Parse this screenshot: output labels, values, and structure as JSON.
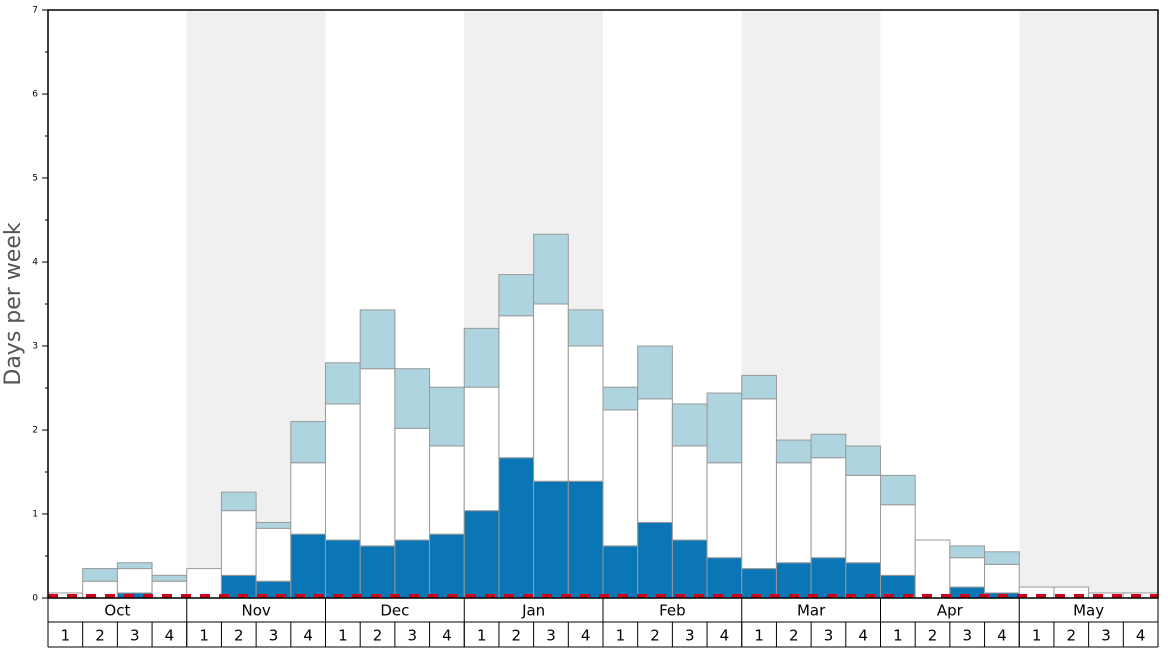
{
  "chart_data": {
    "type": "stacked_bar",
    "y_label": "Days per week",
    "months": [
      "Oct",
      "Nov",
      "Dec",
      "Jan",
      "Feb",
      "Mar",
      "Apr",
      "May"
    ],
    "categories": [
      "1",
      "2",
      "3",
      "4",
      "1",
      "2",
      "3",
      "4",
      "1",
      "2",
      "3",
      "4",
      "1",
      "2",
      "3",
      "4",
      "1",
      "2",
      "3",
      "4",
      "1",
      "2",
      "3",
      "4",
      "1",
      "2",
      "3",
      "4",
      "1",
      "2",
      "3",
      "4"
    ],
    "series": [
      {
        "color": "#0a76b6",
        "values": [
          0,
          0,
          0.06,
          0,
          0,
          0.27,
          0.2,
          0.76,
          0.69,
          0.62,
          0.69,
          0.76,
          1.04,
          1.67,
          1.39,
          1.39,
          0.62,
          0.9,
          0.69,
          0.48,
          0.35,
          0.42,
          0.48,
          0.42,
          0.27,
          0,
          0.13,
          0.06,
          0,
          0,
          0,
          0
        ]
      },
      {
        "color": "#ffffff",
        "values": [
          0.06,
          0.2,
          0.29,
          0.2,
          0.35,
          0.77,
          0.63,
          0.85,
          1.62,
          2.11,
          1.33,
          1.05,
          1.47,
          1.69,
          2.11,
          1.61,
          1.62,
          1.47,
          1.12,
          1.13,
          2.02,
          1.19,
          1.19,
          1.04,
          0.84,
          0.69,
          0.35,
          0.34,
          0.13,
          0.13,
          0.06,
          0.06
        ]
      },
      {
        "color": "#aed4e0",
        "values": [
          0,
          0.15,
          0.07,
          0.07,
          0,
          0.22,
          0.07,
          0.49,
          0.49,
          0.7,
          0.71,
          0.7,
          0.7,
          0.49,
          0.83,
          0.43,
          0.27,
          0.63,
          0.5,
          0.83,
          0.28,
          0.27,
          0.28,
          0.35,
          0.35,
          0,
          0.14,
          0.15,
          0,
          0,
          0,
          0
        ]
      }
    ],
    "ylim": [
      0,
      7
    ],
    "yticks": [
      0,
      1,
      2,
      3,
      4,
      5,
      6,
      7
    ],
    "yminorticks": [
      0.5,
      1.5,
      2.5,
      3.5,
      4.5,
      5.5,
      6.5
    ],
    "band_color": "#f0f0f0",
    "reference_color": "#d0021b"
  }
}
